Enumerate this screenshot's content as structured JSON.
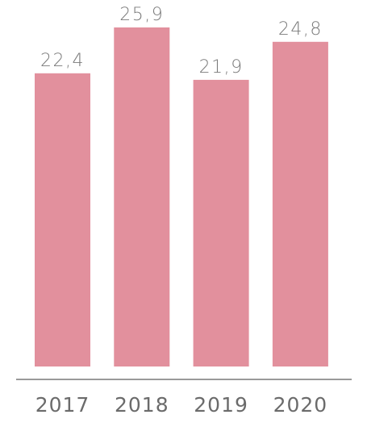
{
  "chart_data": {
    "type": "bar",
    "categories": [
      "2017",
      "2018",
      "2019",
      "2020"
    ],
    "values": [
      22.4,
      25.9,
      21.9,
      24.8
    ],
    "data_labels": [
      "22,4",
      "25,9",
      "21,9",
      "24,8"
    ],
    "title": "",
    "xlabel": "",
    "ylabel": "",
    "ylim": [
      0,
      25.9
    ],
    "grid": false,
    "legend": "none",
    "colors": {
      "bar": "#e2909d",
      "value_label": "#7a7a7a",
      "tick_label": "#6b6b6b",
      "axis": "#9a9a9a"
    }
  }
}
